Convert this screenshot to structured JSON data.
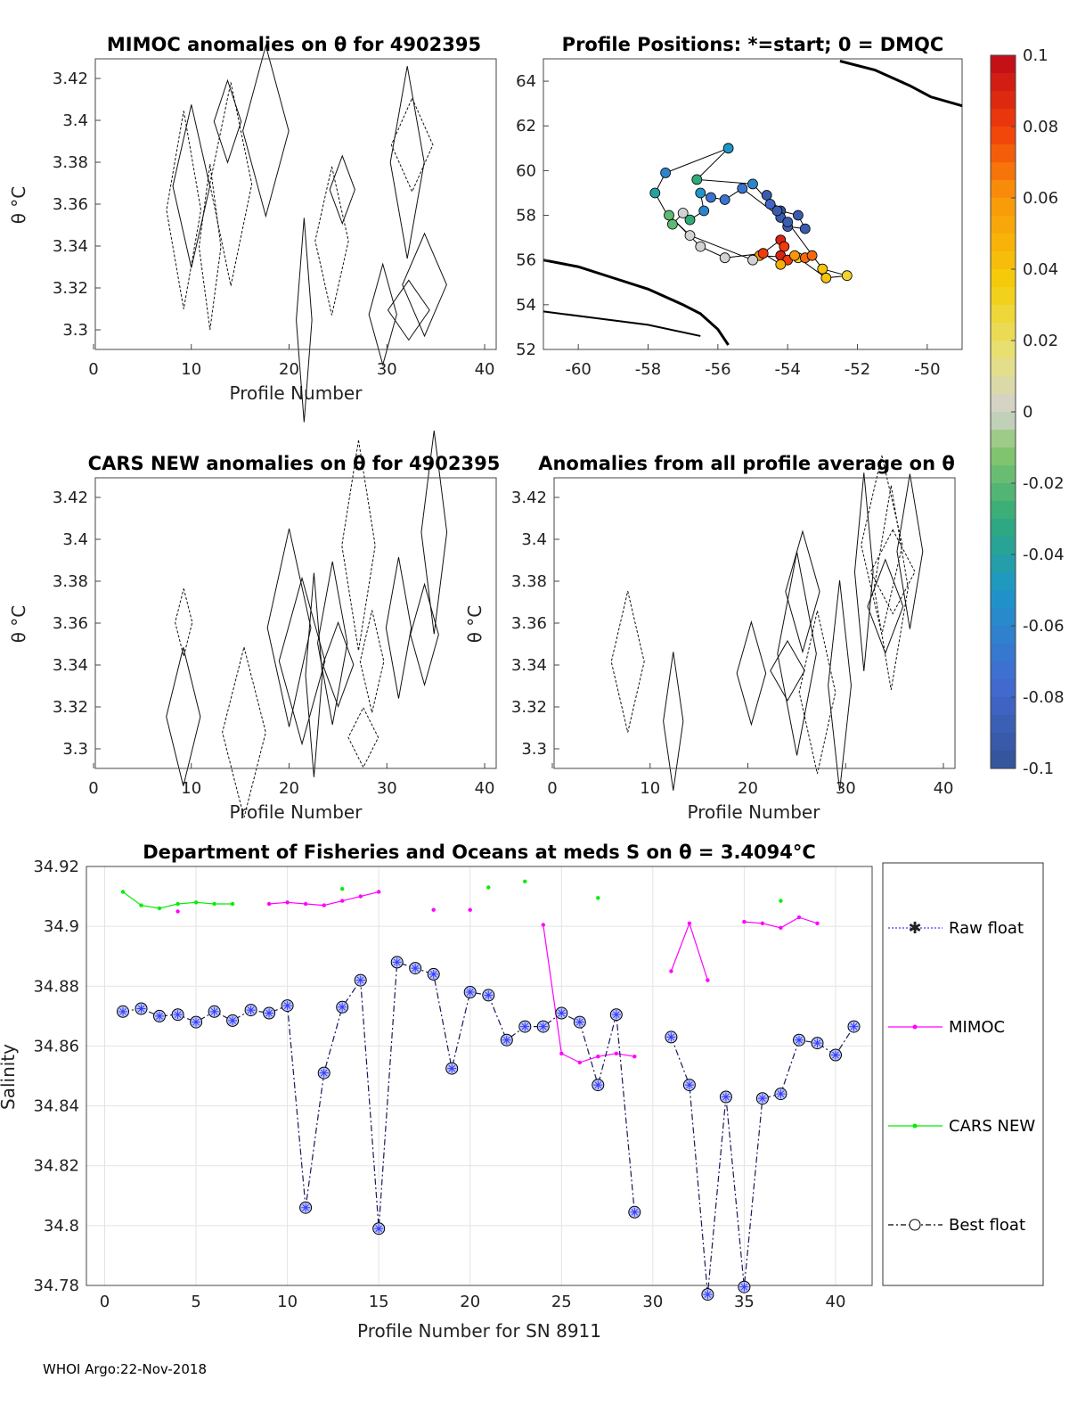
{
  "footer": "WHOI Argo:22-Nov-2018",
  "colors": {
    "raw": "#3a3aff",
    "mimoc": "#ff00ff",
    "cars": "#00ee00",
    "best": "#000000"
  },
  "panels": {
    "mimoc": {
      "title": "MIMOC anomalies on θ  for 4902395",
      "xlabel": "Profile Number",
      "ylabel": "θ °C",
      "yticks": [
        "3.42",
        "3.4",
        "3.38",
        "3.36",
        "3.34",
        "3.32",
        "3.3"
      ],
      "xticks": [
        "0",
        "10",
        "20",
        "30",
        "40"
      ]
    },
    "positions": {
      "title": "Profile Positions: *=start; 0 = DMQC",
      "yticks": [
        "64",
        "62",
        "60",
        "58",
        "56",
        "54",
        "52"
      ],
      "xticks": [
        "-60",
        "-58",
        "-56",
        "-54",
        "-52",
        "-50"
      ]
    },
    "cars": {
      "title": "CARS NEW anomalies on θ for 4902395",
      "xlabel": "Profile Number",
      "ylabel": "θ °C",
      "yticks": [
        "3.42",
        "3.4",
        "3.38",
        "3.36",
        "3.34",
        "3.32",
        "3.3"
      ],
      "xticks": [
        "0",
        "10",
        "20",
        "30",
        "40"
      ]
    },
    "average": {
      "title": "Anomalies from all profile average on θ",
      "xlabel": "Profile Number",
      "ylabel": "θ °C",
      "yticks": [
        "3.42",
        "3.4",
        "3.38",
        "3.36",
        "3.34",
        "3.32",
        "3.3"
      ],
      "xticks": [
        "0",
        "10",
        "20",
        "30",
        "40"
      ]
    }
  },
  "colorbar": {
    "ticks": [
      "0.1",
      "0.08",
      "0.06",
      "0.04",
      "0.02",
      "0",
      "-0.02",
      "-0.04",
      "-0.06",
      "-0.08",
      "-0.1"
    ]
  },
  "chart_data": {
    "type": "line",
    "title": "Department of Fisheries and Oceans at meds S on θ = 3.4094°C",
    "xlabel": "Profile Number for SN 8911",
    "ylabel": "Salinity",
    "xlim": [
      -1,
      42
    ],
    "ylim": [
      34.78,
      34.92
    ],
    "xticks": [
      "0",
      "5",
      "10",
      "15",
      "20",
      "25",
      "30",
      "35",
      "40"
    ],
    "yticks": [
      "34.92",
      "34.9",
      "34.88",
      "34.86",
      "34.84",
      "34.82",
      "34.8",
      "34.78"
    ],
    "legend": [
      "Raw float",
      "MIMOC",
      "CARS NEW",
      "Best float"
    ],
    "series": [
      {
        "name": "Best float",
        "x": [
          1,
          2,
          3,
          4,
          5,
          6,
          7,
          8,
          9,
          10,
          11,
          12,
          13,
          14,
          15,
          16,
          17,
          18,
          19,
          20,
          21,
          22,
          23,
          24,
          25,
          26,
          27,
          28,
          29,
          30,
          31,
          32,
          33,
          34,
          35,
          36,
          37,
          38,
          39,
          40,
          41
        ],
        "values": [
          34.8715,
          34.8725,
          34.87,
          34.8705,
          34.868,
          34.8715,
          34.8685,
          34.872,
          34.871,
          34.8735,
          34.806,
          34.851,
          34.873,
          34.882,
          34.799,
          34.888,
          34.886,
          34.884,
          34.8525,
          34.878,
          34.877,
          34.862,
          34.8665,
          34.8665,
          34.871,
          34.868,
          34.847,
          34.8705,
          34.8045,
          null,
          34.863,
          34.847,
          34.777,
          34.843,
          34.7795,
          34.8425,
          34.844,
          34.862,
          34.861,
          34.857,
          34.8665
        ]
      },
      {
        "name": "MIMOC",
        "x": [
          1,
          2,
          3,
          4,
          5,
          6,
          7,
          8,
          9,
          10,
          11,
          12,
          13,
          14,
          15,
          16,
          17,
          18,
          19,
          20,
          21,
          22,
          23,
          24,
          25,
          26,
          27,
          28,
          29,
          30,
          31,
          32,
          33,
          34,
          35,
          36,
          37,
          38,
          39,
          40,
          41
        ],
        "values": [
          null,
          null,
          null,
          34.905,
          null,
          null,
          null,
          null,
          34.9075,
          34.908,
          34.9075,
          34.907,
          34.9085,
          34.91,
          34.9115,
          null,
          null,
          34.9055,
          null,
          34.9055,
          null,
          null,
          null,
          34.9005,
          34.8575,
          34.8545,
          34.8565,
          34.8575,
          34.8565,
          null,
          34.885,
          34.901,
          34.882,
          null,
          34.9015,
          34.901,
          34.8995,
          34.903,
          34.901,
          null,
          null
        ]
      },
      {
        "name": "CARS NEW",
        "x": [
          1,
          2,
          3,
          4,
          5,
          6,
          7,
          8,
          9,
          10,
          11,
          12,
          13,
          14,
          15,
          16,
          17,
          18,
          19,
          20,
          21,
          22,
          23,
          24,
          25,
          26,
          27,
          28,
          29,
          30,
          31,
          32,
          33,
          34,
          35,
          36,
          37,
          38,
          39,
          40,
          41
        ],
        "values": [
          34.9115,
          34.907,
          34.906,
          34.9075,
          34.908,
          34.9075,
          34.9075,
          null,
          null,
          null,
          null,
          null,
          34.9125,
          null,
          null,
          null,
          null,
          null,
          null,
          null,
          34.913,
          null,
          34.915,
          null,
          null,
          null,
          34.9095,
          null,
          null,
          null,
          null,
          null,
          null,
          null,
          null,
          null,
          34.9085,
          null,
          null,
          null,
          null
        ]
      }
    ],
    "positions": {
      "lon": [
        -54.6,
        -54.2,
        -53.7,
        -53.5,
        -54.0,
        -54.2,
        -55.3,
        -55.8,
        -56.2,
        -56.5,
        -56.4,
        -56.8,
        -57.0,
        -57.3,
        -57.8,
        -57.5,
        -55.7,
        -56.6,
        -55.0,
        -54.3,
        -54.5,
        -54.0,
        -53.0,
        -52.3,
        -52.9,
        -53.7,
        -54.8,
        -54.2,
        -54.1,
        -54.2,
        -54.0,
        -53.5,
        -53.3,
        -53.8,
        -54.2,
        -54.7,
        -55.8,
        -56.5,
        -57.4,
        -56.8,
        -55.0
      ],
      "lat": [
        58.9,
        58.2,
        58.0,
        57.4,
        57.5,
        57.9,
        59.2,
        58.7,
        58.8,
        59.0,
        58.2,
        57.8,
        58.1,
        57.6,
        59.0,
        59.9,
        61.0,
        59.6,
        59.4,
        58.2,
        58.5,
        57.7,
        55.6,
        55.3,
        55.2,
        56.1,
        56.2,
        56.9,
        56.6,
        56.2,
        56.0,
        56.1,
        56.2,
        56.2,
        55.8,
        56.3,
        56.1,
        56.6,
        58.0,
        57.1,
        56.0
      ],
      "anomaly": [
        -0.09,
        -0.1,
        -0.09,
        -0.09,
        -0.09,
        -0.09,
        -0.07,
        -0.07,
        -0.07,
        -0.05,
        -0.06,
        -0.03,
        0.0,
        -0.02,
        -0.04,
        -0.06,
        -0.05,
        -0.03,
        -0.06,
        -0.09,
        -0.08,
        -0.09,
        0.04,
        0.03,
        0.04,
        0.03,
        0.06,
        0.09,
        0.08,
        0.09,
        0.08,
        0.07,
        0.07,
        0.06,
        0.05,
        0.08,
        0.0,
        0.0,
        -0.02,
        0.0,
        0.0
      ]
    }
  }
}
